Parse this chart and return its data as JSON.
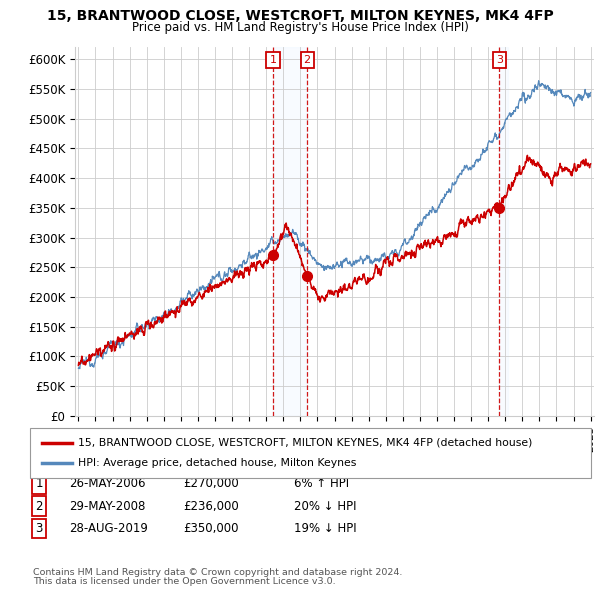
{
  "title": "15, BRANTWOOD CLOSE, WESTCROFT, MILTON KEYNES, MK4 4FP",
  "subtitle": "Price paid vs. HM Land Registry's House Price Index (HPI)",
  "ylabel_ticks": [
    "£0",
    "£50K",
    "£100K",
    "£150K",
    "£200K",
    "£250K",
    "£300K",
    "£350K",
    "£400K",
    "£450K",
    "£500K",
    "£550K",
    "£600K"
  ],
  "ytick_vals": [
    0,
    50000,
    100000,
    150000,
    200000,
    250000,
    300000,
    350000,
    400000,
    450000,
    500000,
    550000,
    600000
  ],
  "ylim": [
    0,
    620000
  ],
  "legend_line1": "15, BRANTWOOD CLOSE, WESTCROFT, MILTON KEYNES, MK4 4FP (detached house)",
  "legend_line2": "HPI: Average price, detached house, Milton Keynes",
  "transactions": [
    {
      "num": 1,
      "date": "26-MAY-2006",
      "price": 270000,
      "pct": "6%",
      "dir": "↑",
      "x": 2006.4
    },
    {
      "num": 2,
      "date": "29-MAY-2008",
      "price": 236000,
      "pct": "20%",
      "dir": "↓",
      "x": 2008.4
    },
    {
      "num": 3,
      "date": "28-AUG-2019",
      "price": 350000,
      "pct": "19%",
      "dir": "↓",
      "x": 2019.65
    }
  ],
  "footer1": "Contains HM Land Registry data © Crown copyright and database right 2024.",
  "footer2": "This data is licensed under the Open Government Licence v3.0.",
  "red_color": "#cc0000",
  "blue_color": "#5588bb",
  "shade_color": "#ddeeff",
  "grid_color": "#cccccc",
  "bg_color": "#ffffff"
}
